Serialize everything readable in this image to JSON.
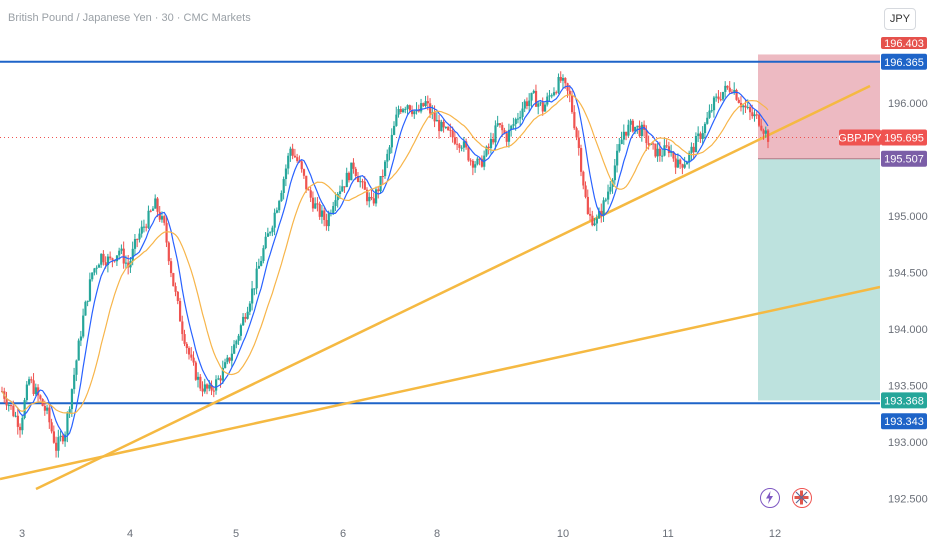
{
  "chart_title": "British Pound / Japanese Yen · 30 · CMC Markets",
  "currency_button": "JPY",
  "colors": {
    "up": "#26a69a",
    "down": "#ef5350",
    "ma_fast": "#2962ff",
    "ma_slow": "#f7b54a",
    "trendline": "#f5b942",
    "level_line": "#1e64c8",
    "risk_zone": "#ebb3bb",
    "reward_zone": "#b6dfda"
  },
  "chart_data": {
    "type": "candlestick",
    "symbol": "GBPJPY",
    "timeframe": "30",
    "x_tick_labels": [
      "3",
      "4",
      "5",
      "6",
      "8",
      "10",
      "11",
      "12"
    ],
    "y_tick_labels": [
      "192.500",
      "193.000",
      "193.500",
      "194.000",
      "194.500",
      "195.000",
      "196.000"
    ],
    "ylim": [
      192.3,
      196.85
    ],
    "horizontal_levels": [
      196.365,
      193.343
    ],
    "trendlines": [
      {
        "from": [
          "3",
          192.8
        ],
        "to": [
          "12",
          196.2
        ]
      },
      {
        "from": [
          "3",
          192.7
        ],
        "to": [
          "12",
          194.35
        ]
      }
    ],
    "price_tags": {
      "top_cut": "196.403",
      "upper_level": "196.365",
      "current_label": "GBPJPY",
      "current": "195.695",
      "entry": "195.507",
      "target": "193.368",
      "lower_level": "193.343"
    },
    "position": {
      "stop": 196.403,
      "entry": 195.507,
      "target": 193.368
    },
    "approx_close_path": [
      193.45,
      193.3,
      193.15,
      193.55,
      193.4,
      193.25,
      192.95,
      193.1,
      193.6,
      194.1,
      194.5,
      194.65,
      194.6,
      194.7,
      194.55,
      194.8,
      194.95,
      195.1,
      194.9,
      194.4,
      194.0,
      193.7,
      193.5,
      193.45,
      193.55,
      193.7,
      193.9,
      194.15,
      194.4,
      194.7,
      194.95,
      195.25,
      195.6,
      195.45,
      195.2,
      195.05,
      194.95,
      195.2,
      195.3,
      195.45,
      195.25,
      195.1,
      195.3,
      195.6,
      195.95,
      196.0,
      195.9,
      196.0,
      195.85,
      195.75,
      195.7,
      195.65,
      195.5,
      195.45,
      195.6,
      195.8,
      195.7,
      195.85,
      196.0,
      196.05,
      195.95,
      196.1,
      196.2,
      196.05,
      195.6,
      195.0,
      194.95,
      195.15,
      195.45,
      195.75,
      195.8,
      195.75,
      195.6,
      195.55,
      195.6,
      195.45,
      195.5,
      195.65,
      195.8,
      196.0,
      196.1,
      196.15,
      196.0,
      195.9,
      195.85,
      195.7
    ]
  }
}
